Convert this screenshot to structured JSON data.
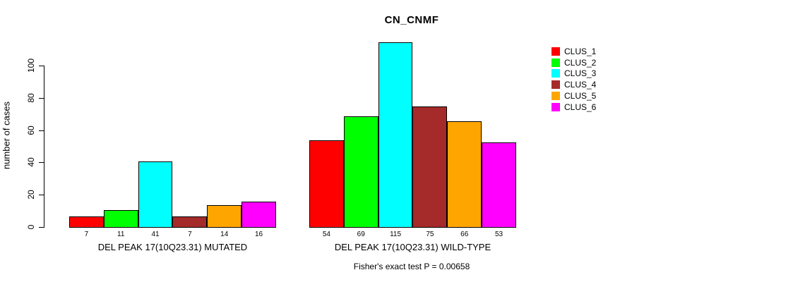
{
  "chart_data": {
    "type": "bar",
    "title": "CN_CNMF",
    "ylabel": "number of cases",
    "xlabel": "",
    "ylim": [
      0,
      115
    ],
    "yticks": [
      0,
      20,
      40,
      60,
      80,
      100
    ],
    "grid": false,
    "legend_position": "right-outside",
    "legend": [
      "CLUS_1",
      "CLUS_2",
      "CLUS_3",
      "CLUS_4",
      "CLUS_5",
      "CLUS_6"
    ],
    "series_colors": [
      "#FF0000",
      "#00FF00",
      "#00FFFF",
      "#A52A2A",
      "#FFA500",
      "#FF00FF"
    ],
    "bar_border_color": "#000000",
    "groups": [
      {
        "label": "DEL PEAK 17(10Q23.31) MUTATED",
        "values": [
          7,
          11,
          41,
          7,
          14,
          16
        ]
      },
      {
        "label": "DEL PEAK 17(10Q23.31) WILD-TYPE",
        "values": [
          54,
          69,
          115,
          75,
          66,
          53
        ]
      }
    ],
    "annotation": "Fisher's exact test P = 0.00658"
  }
}
